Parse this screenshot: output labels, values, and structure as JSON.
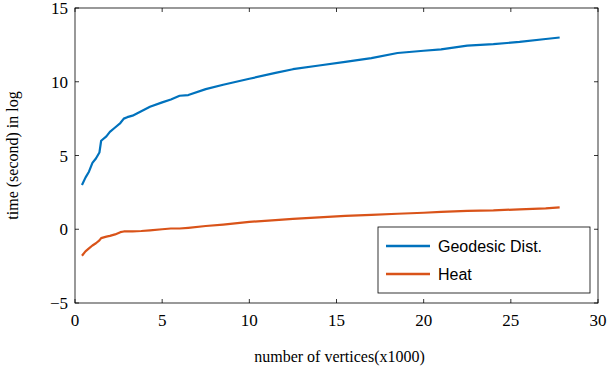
{
  "chart_data": {
    "type": "line",
    "x_label": "number of vertices(x1000)",
    "y_label": "time (second) in log",
    "x": [
      0.4,
      0.6,
      0.8,
      1.0,
      1.2,
      1.4,
      1.5,
      1.8,
      2.0,
      2.3,
      2.6,
      2.8,
      3.0,
      3.3,
      3.8,
      4.3,
      5,
      5.5,
      6,
      6.5,
      7.5,
      8.5,
      10,
      11.5,
      12.5,
      14,
      15.5,
      17,
      18.5,
      20,
      21,
      22.5,
      24,
      25.5,
      27,
      27.8
    ],
    "series": [
      {
        "name": "Geodesic Dist.",
        "color": "#0072bd",
        "values": [
          3.0,
          3.5,
          3.9,
          4.5,
          4.8,
          5.2,
          6.0,
          6.3,
          6.6,
          6.9,
          7.2,
          7.5,
          7.6,
          7.7,
          8.0,
          8.3,
          8.6,
          8.8,
          9.05,
          9.1,
          9.5,
          9.8,
          10.2,
          10.6,
          10.85,
          11.1,
          11.35,
          11.6,
          11.95,
          12.1,
          12.2,
          12.45,
          12.55,
          12.7,
          12.9,
          13.0
        ]
      },
      {
        "name": "Heat",
        "color": "#d95319",
        "values": [
          -1.8,
          -1.5,
          -1.3,
          -1.1,
          -0.95,
          -0.75,
          -0.6,
          -0.5,
          -0.45,
          -0.35,
          -0.2,
          -0.15,
          -0.15,
          -0.15,
          -0.12,
          -0.07,
          0,
          0.05,
          0.05,
          0.1,
          0.22,
          0.32,
          0.5,
          0.62,
          0.7,
          0.8,
          0.9,
          0.98,
          1.05,
          1.12,
          1.18,
          1.25,
          1.28,
          1.35,
          1.42,
          1.48
        ]
      }
    ],
    "xlim": [
      0,
      30
    ],
    "xticks": [
      0,
      5,
      10,
      15,
      20,
      25,
      30
    ],
    "ylim": [
      -5,
      15
    ],
    "yticks": [
      -5,
      0,
      5,
      10,
      15
    ],
    "grid": false,
    "legend": "south east"
  }
}
